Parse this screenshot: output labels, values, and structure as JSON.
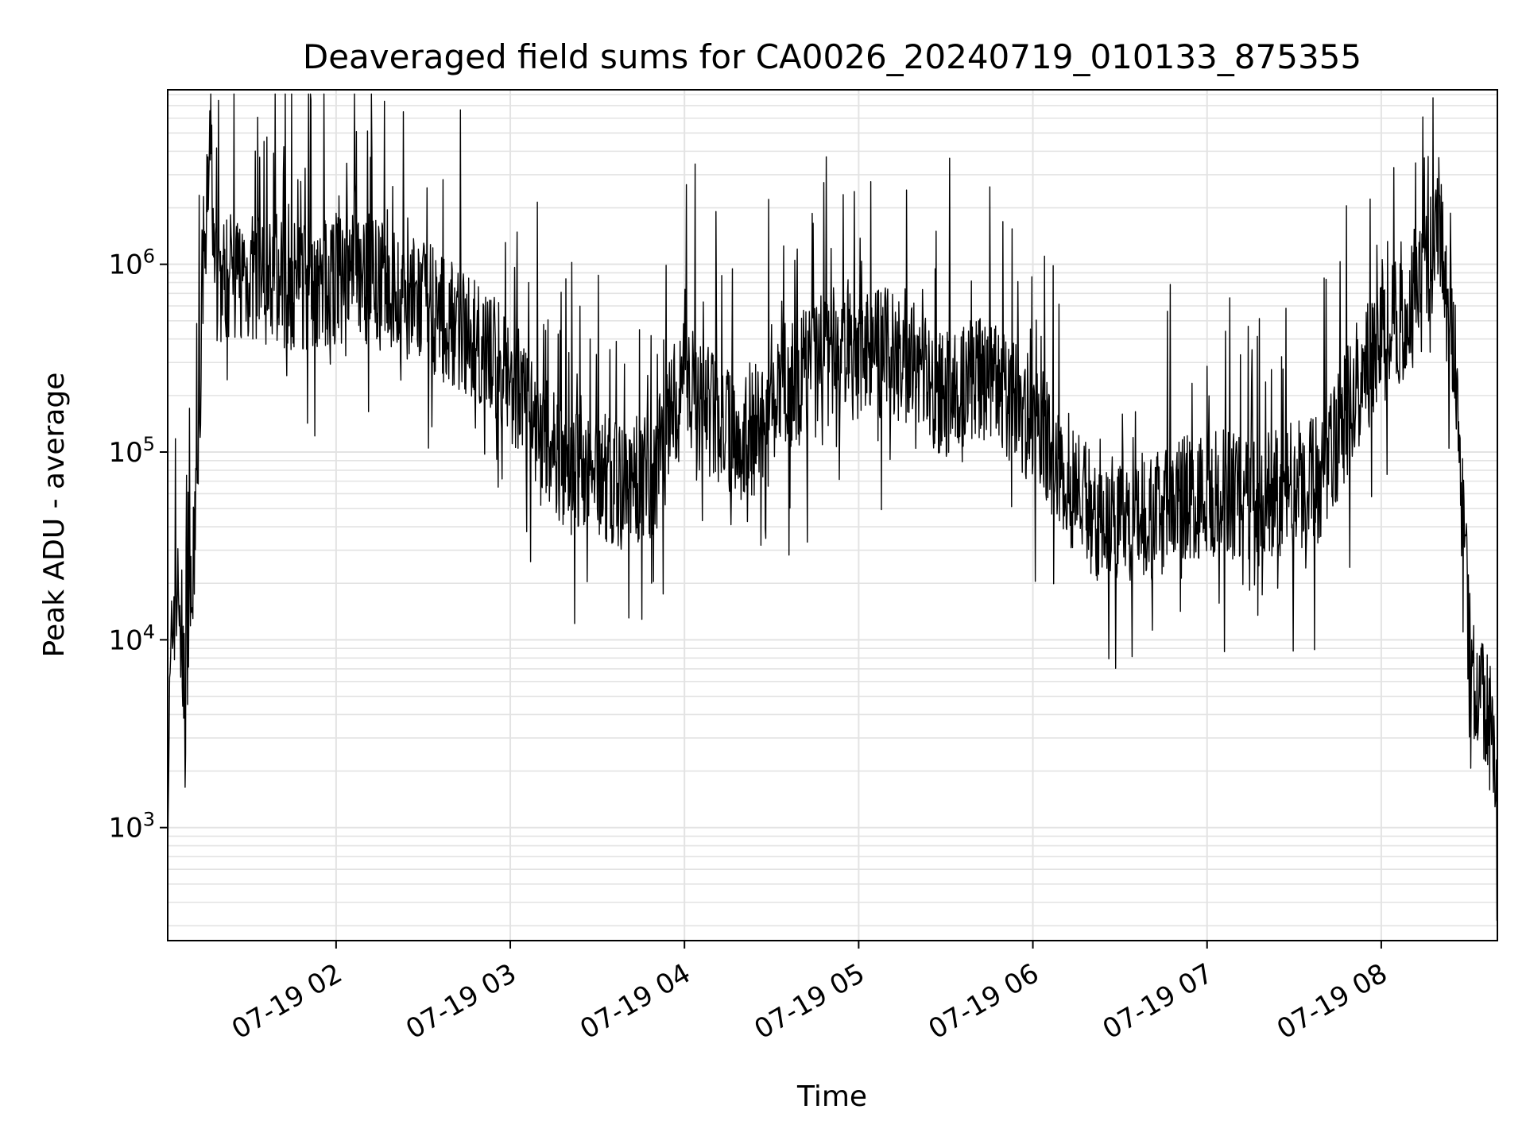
{
  "chart_data": {
    "type": "line",
    "title": "Deaveraged field sums for CA0026_20240719_010133_875355",
    "xlabel": "Time",
    "ylabel": "Peak ADU - average",
    "yscale": "log",
    "ylim": [
      250,
      8500000
    ],
    "xlim": [
      "07-19 01:02",
      "07-19 08:40"
    ],
    "grid": "on (major and minor)",
    "line_color": "#000000",
    "x_ticks": [
      {
        "value": "07-19 02:00",
        "label": "07-19 02"
      },
      {
        "value": "07-19 03:00",
        "label": "07-19 03"
      },
      {
        "value": "07-19 04:00",
        "label": "07-19 04"
      },
      {
        "value": "07-19 05:00",
        "label": "07-19 05"
      },
      {
        "value": "07-19 06:00",
        "label": "07-19 06"
      },
      {
        "value": "07-19 07:00",
        "label": "07-19 07"
      },
      {
        "value": "07-19 08:00",
        "label": "07-19 08"
      }
    ],
    "y_ticks": [
      {
        "value": 1000,
        "base": "10",
        "exp": "3"
      },
      {
        "value": 10000,
        "base": "10",
        "exp": "4"
      },
      {
        "value": 100000,
        "base": "10",
        "exp": "5"
      },
      {
        "value": 1000000,
        "base": "10",
        "exp": "6"
      }
    ],
    "series": [
      {
        "points": [
          [
            "07-19 01:02",
            1500
          ],
          [
            "07-19 01:03",
            6000
          ],
          [
            "07-19 01:04",
            15000
          ],
          [
            "07-19 01:05",
            18000
          ],
          [
            "07-19 01:06",
            14000
          ],
          [
            "07-19 01:07",
            10000
          ],
          [
            "07-19 01:08",
            2500
          ],
          [
            "07-19 01:09",
            8000
          ],
          [
            "07-19 01:10",
            15000
          ],
          [
            "07-19 01:11",
            25000
          ],
          [
            "07-19 01:12",
            100000
          ],
          [
            "07-19 01:13",
            180000
          ],
          [
            "07-19 01:14",
            900000
          ],
          [
            "07-19 01:15",
            1500000
          ],
          [
            "07-19 01:16",
            2500000
          ],
          [
            "07-19 01:17",
            5000000
          ],
          [
            "07-19 01:18",
            900000
          ],
          [
            "07-19 01:20",
            800000
          ],
          [
            "07-19 01:25",
            900000
          ],
          [
            "07-19 01:30",
            850000
          ],
          [
            "07-19 01:40",
            800000
          ],
          [
            "07-19 01:50",
            750000
          ],
          [
            "07-19 02:00",
            800000
          ],
          [
            "07-19 02:10",
            850000
          ],
          [
            "07-19 02:20",
            700000
          ],
          [
            "07-19 02:30",
            600000
          ],
          [
            "07-19 02:40",
            500000
          ],
          [
            "07-19 02:50",
            350000
          ],
          [
            "07-19 03:00",
            250000
          ],
          [
            "07-19 03:10",
            120000
          ],
          [
            "07-19 03:20",
            80000
          ],
          [
            "07-19 03:30",
            75000
          ],
          [
            "07-19 03:40",
            65000
          ],
          [
            "07-19 03:50",
            80000
          ],
          [
            "07-19 04:00",
            250000
          ],
          [
            "07-19 04:10",
            150000
          ],
          [
            "07-19 04:20",
            120000
          ],
          [
            "07-19 04:30",
            150000
          ],
          [
            "07-19 04:40",
            250000
          ],
          [
            "07-19 04:50",
            350000
          ],
          [
            "07-19 05:00",
            300000
          ],
          [
            "07-19 05:10",
            350000
          ],
          [
            "07-19 05:20",
            250000
          ],
          [
            "07-19 05:30",
            200000
          ],
          [
            "07-19 05:40",
            250000
          ],
          [
            "07-19 05:50",
            200000
          ],
          [
            "07-19 06:00",
            150000
          ],
          [
            "07-19 06:10",
            80000
          ],
          [
            "07-19 06:20",
            50000
          ],
          [
            "07-19 06:30",
            45000
          ],
          [
            "07-19 06:40",
            45000
          ],
          [
            "07-19 06:50",
            55000
          ],
          [
            "07-19 07:00",
            60000
          ],
          [
            "07-19 07:10",
            60000
          ],
          [
            "07-19 07:20",
            60000
          ],
          [
            "07-19 07:30",
            65000
          ],
          [
            "07-19 07:40",
            70000
          ],
          [
            "07-19 07:50",
            200000
          ],
          [
            "07-19 08:00",
            400000
          ],
          [
            "07-19 08:10",
            600000
          ],
          [
            "07-19 08:15",
            800000
          ],
          [
            "07-19 08:18",
            1200000
          ],
          [
            "07-19 08:20",
            2000000
          ],
          [
            "07-19 08:22",
            700000
          ],
          [
            "07-19 08:25",
            400000
          ],
          [
            "07-19 08:28",
            80000
          ],
          [
            "07-19 08:30",
            10000
          ],
          [
            "07-19 08:33",
            5000
          ],
          [
            "07-19 08:36",
            4000
          ],
          [
            "07-19 08:38",
            3000
          ],
          [
            "07-19 08:40",
            2000
          ]
        ]
      }
    ]
  }
}
